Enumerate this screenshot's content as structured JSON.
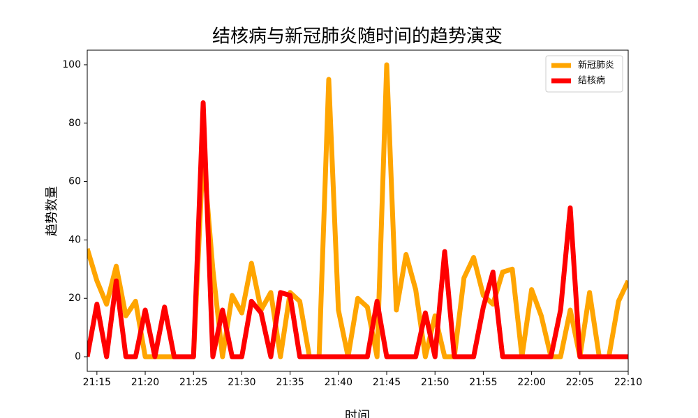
{
  "chart_data": {
    "type": "line",
    "title": "结核病与新冠肺炎随时间的趋势演变",
    "x_label": "时间",
    "y_label": "趋势数量",
    "x": [
      "21:14",
      "21:15",
      "21:16",
      "21:17",
      "21:18",
      "21:19",
      "21:20",
      "21:21",
      "21:22",
      "21:23",
      "21:24",
      "21:25",
      "21:26",
      "21:27",
      "21:28",
      "21:29",
      "21:30",
      "21:31",
      "21:32",
      "21:33",
      "21:34",
      "21:35",
      "21:36",
      "21:37",
      "21:38",
      "21:39",
      "21:40",
      "21:41",
      "21:42",
      "21:43",
      "21:44",
      "21:45",
      "21:46",
      "21:47",
      "21:48",
      "21:49",
      "21:50",
      "21:51",
      "21:52",
      "21:53",
      "21:54",
      "21:55",
      "21:56",
      "21:57",
      "21:58",
      "21:59",
      "22:00",
      "22:01",
      "22:02",
      "22:03",
      "22:04",
      "22:05",
      "22:06",
      "22:07",
      "22:08",
      "22:09",
      "22:10"
    ],
    "series": [
      {
        "name": "新冠肺炎",
        "color": "#ffa500",
        "values": [
          37,
          26,
          18,
          31,
          14,
          19,
          0,
          0,
          0,
          0,
          0,
          0,
          70,
          30,
          0,
          21,
          15,
          32,
          16,
          22,
          0,
          22,
          19,
          0,
          0,
          95,
          16,
          0,
          20,
          17,
          0,
          100,
          16,
          35,
          23,
          0,
          14,
          0,
          0,
          27,
          34,
          21,
          18,
          29,
          30,
          0,
          23,
          14,
          0,
          0,
          16,
          0,
          22,
          0,
          0,
          19,
          26
        ]
      },
      {
        "name": "结核病",
        "color": "#ff0000",
        "values": [
          0,
          18,
          0,
          26,
          0,
          0,
          16,
          0,
          17,
          0,
          0,
          0,
          87,
          0,
          16,
          0,
          0,
          19,
          15,
          0,
          22,
          21,
          0,
          0,
          0,
          0,
          0,
          0,
          0,
          0,
          19,
          0,
          0,
          0,
          0,
          15,
          0,
          36,
          0,
          0,
          0,
          17,
          29,
          0,
          0,
          0,
          0,
          0,
          0,
          16,
          51,
          0,
          0,
          0,
          0,
          0,
          0
        ]
      }
    ],
    "xlim": [
      "21:14",
      "22:10"
    ],
    "xticks": [
      "21:15",
      "21:20",
      "21:25",
      "21:30",
      "21:35",
      "21:40",
      "21:45",
      "21:50",
      "21:55",
      "22:00",
      "22:05",
      "22:10"
    ],
    "ylim": [
      -5,
      105
    ],
    "yticks": [
      0,
      20,
      40,
      60,
      80,
      100
    ],
    "legend": "upper right"
  }
}
